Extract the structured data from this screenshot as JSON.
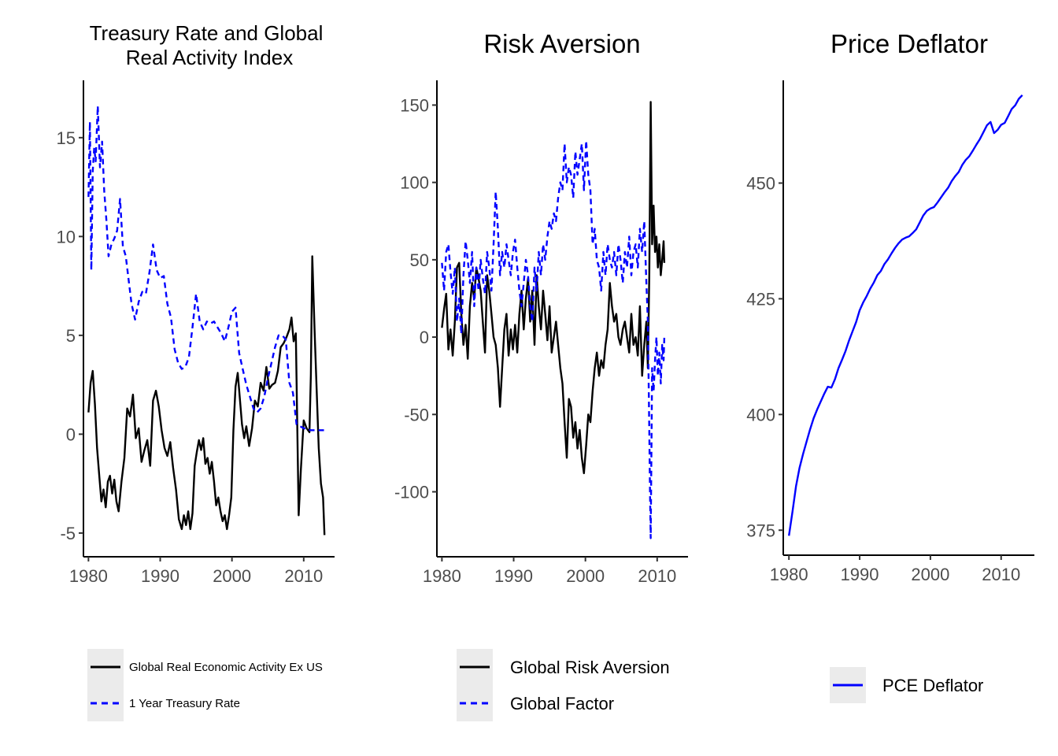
{
  "chart_data": [
    {
      "type": "line",
      "title_lines": [
        "Treasury Rate and Global",
        "Real Activity Index"
      ],
      "xlabel": "",
      "ylabel": "",
      "xlim": [
        1979.3,
        2014.3
      ],
      "ylim": [
        -6.2,
        17.9
      ],
      "xticks": [
        1980,
        1990,
        2000,
        2010
      ],
      "yticks": [
        -5,
        0,
        5,
        10,
        15
      ],
      "ytick_labels": [
        "-5",
        "0",
        "5",
        "10",
        "15"
      ],
      "grid": false,
      "legend": "bottom",
      "series": [
        {
          "name": "Global Real Economic Activity Ex US",
          "color": "#000000",
          "style": "solid",
          "x": [
            1980.0,
            1980.3,
            1980.6,
            1980.9,
            1981.2,
            1981.5,
            1981.8,
            1982.1,
            1982.4,
            1982.7,
            1983.0,
            1983.3,
            1983.6,
            1983.9,
            1984.2,
            1984.6,
            1985.0,
            1985.4,
            1985.8,
            1986.2,
            1986.6,
            1987.0,
            1987.4,
            1987.8,
            1988.2,
            1988.6,
            1989.0,
            1989.4,
            1989.8,
            1990.2,
            1990.6,
            1991.0,
            1991.4,
            1991.8,
            1992.2,
            1992.6,
            1993.0,
            1993.3,
            1993.6,
            1993.9,
            1994.2,
            1994.5,
            1994.8,
            1995.1,
            1995.4,
            1995.7,
            1996.0,
            1996.3,
            1996.6,
            1996.9,
            1997.2,
            1997.5,
            1997.8,
            1998.1,
            1998.4,
            1998.7,
            1999.0,
            1999.3,
            1999.6,
            1999.9,
            2000.2,
            2000.5,
            2000.8,
            2001.1,
            2001.4,
            2001.7,
            2002.0,
            2002.4,
            2002.8,
            2003.2,
            2003.6,
            2004.0,
            2004.4,
            2004.8,
            2005.2,
            2005.6,
            2006.0,
            2006.4,
            2006.8,
            2007.2,
            2007.6,
            2008.0,
            2008.3,
            2008.6,
            2008.9,
            2009.1,
            2009.3,
            2009.6,
            2010.0,
            2010.4,
            2010.8,
            2011.0,
            2011.2,
            2011.5,
            2011.8,
            2012.1,
            2012.4,
            2012.7,
            2012.9
          ],
          "values": [
            1.1,
            2.6,
            3.2,
            1.5,
            -0.7,
            -2.1,
            -3.4,
            -2.8,
            -3.7,
            -2.4,
            -2.1,
            -3.0,
            -2.3,
            -3.4,
            -3.9,
            -2.4,
            -1.2,
            1.3,
            0.9,
            2.0,
            -0.2,
            0.3,
            -1.4,
            -0.8,
            -0.3,
            -1.6,
            1.7,
            2.2,
            1.4,
            0.2,
            -0.7,
            -1.1,
            -0.4,
            -1.7,
            -2.8,
            -4.3,
            -4.8,
            -4.1,
            -4.6,
            -3.9,
            -4.8,
            -4.0,
            -1.6,
            -0.9,
            -0.3,
            -0.8,
            -0.2,
            -1.5,
            -1.2,
            -2.0,
            -1.4,
            -2.4,
            -3.6,
            -3.2,
            -3.9,
            -4.4,
            -4.1,
            -4.8,
            -4.1,
            -3.2,
            0.2,
            2.4,
            3.1,
            1.8,
            0.5,
            -0.2,
            0.4,
            -0.6,
            0.3,
            1.7,
            1.4,
            2.6,
            2.2,
            3.4,
            2.3,
            2.5,
            2.6,
            3.2,
            4.4,
            4.6,
            4.9,
            5.3,
            5.9,
            4.7,
            5.1,
            0.5,
            -4.1,
            -1.8,
            0.7,
            0.3,
            0.1,
            3.0,
            9.0,
            5.4,
            2.3,
            -0.7,
            -2.5,
            -3.2,
            -5.1
          ]
        },
        {
          "name": "1 Year Treasury Rate",
          "color": "#0000ff",
          "style": "dashed",
          "x": [
            1980.0,
            1980.2,
            1980.4,
            1980.6,
            1980.8,
            1981.0,
            1981.3,
            1981.6,
            1981.9,
            1982.2,
            1982.5,
            1982.8,
            1983.2,
            1983.6,
            1984.0,
            1984.4,
            1984.8,
            1985.2,
            1985.6,
            1986.0,
            1986.5,
            1987.0,
            1987.5,
            1988.0,
            1988.5,
            1989.0,
            1989.5,
            1990.0,
            1990.5,
            1991.0,
            1991.5,
            1992.0,
            1992.5,
            1993.0,
            1993.5,
            1994.0,
            1994.5,
            1995.0,
            1995.5,
            1996.0,
            1996.5,
            1997.0,
            1997.5,
            1998.0,
            1998.5,
            1999.0,
            1999.5,
            2000.0,
            2000.5,
            2001.0,
            2001.5,
            2002.0,
            2002.5,
            2003.0,
            2003.5,
            2004.0,
            2004.5,
            2005.0,
            2005.5,
            2006.0,
            2006.5,
            2007.0,
            2007.5,
            2008.0,
            2008.5,
            2009.0,
            2010.0,
            2011.0,
            2012.0,
            2013.0
          ],
          "values": [
            12.0,
            15.8,
            8.3,
            13.3,
            14.5,
            13.8,
            16.6,
            13.5,
            14.8,
            12.3,
            10.8,
            9.0,
            9.6,
            9.9,
            10.3,
            11.9,
            9.5,
            9.0,
            7.8,
            6.6,
            5.8,
            6.7,
            7.2,
            7.1,
            8.2,
            9.6,
            8.3,
            7.9,
            8.0,
            6.6,
            5.9,
            4.3,
            3.6,
            3.3,
            3.4,
            3.9,
            5.4,
            7.1,
            5.7,
            5.3,
            5.7,
            5.6,
            5.7,
            5.4,
            5.1,
            4.7,
            5.4,
            6.2,
            6.4,
            4.1,
            3.3,
            2.5,
            1.9,
            1.3,
            1.1,
            1.3,
            1.9,
            2.8,
            3.6,
            4.4,
            5.0,
            5.0,
            4.8,
            2.6,
            2.1,
            0.5,
            0.3,
            0.2,
            0.2,
            0.2
          ]
        }
      ]
    },
    {
      "type": "line",
      "title": "Risk Aversion",
      "xlabel": "",
      "ylabel": "",
      "xlim": [
        1979.3,
        2014.3
      ],
      "ylim": [
        -142,
        166
      ],
      "xticks": [
        1980,
        1990,
        2000,
        2010
      ],
      "yticks": [
        -100,
        -50,
        0,
        50,
        100,
        150
      ],
      "ytick_labels": [
        "-100",
        "-50",
        "0",
        "50",
        "100",
        "150"
      ],
      "grid": false,
      "legend": "bottom",
      "series": [
        {
          "name": "Global Risk Aversion",
          "color": "#000000",
          "style": "solid",
          "x": [
            1980.0,
            1980.3,
            1980.6,
            1980.9,
            1981.2,
            1981.5,
            1981.8,
            1982.1,
            1982.4,
            1982.7,
            1983.0,
            1983.3,
            1983.6,
            1983.9,
            1984.2,
            1984.5,
            1984.8,
            1985.1,
            1985.4,
            1985.7,
            1986.0,
            1986.3,
            1986.6,
            1986.9,
            1987.2,
            1987.5,
            1987.8,
            1988.1,
            1988.4,
            1988.7,
            1989.0,
            1989.3,
            1989.6,
            1989.9,
            1990.2,
            1990.5,
            1990.8,
            1991.1,
            1991.4,
            1991.7,
            1992.0,
            1992.3,
            1992.6,
            1992.9,
            1993.2,
            1993.5,
            1993.8,
            1994.1,
            1994.4,
            1994.7,
            1995.0,
            1995.3,
            1995.6,
            1995.9,
            1996.2,
            1996.5,
            1996.8,
            1997.1,
            1997.4,
            1997.7,
            1998.0,
            1998.3,
            1998.6,
            1998.9,
            1999.2,
            1999.5,
            1999.8,
            2000.1,
            2000.4,
            2000.7,
            2001.0,
            2001.3,
            2001.6,
            2001.9,
            2002.2,
            2002.5,
            2002.8,
            2003.1,
            2003.4,
            2003.7,
            2004.0,
            2004.3,
            2004.6,
            2004.9,
            2005.2,
            2005.5,
            2005.8,
            2006.1,
            2006.4,
            2006.7,
            2007.0,
            2007.3,
            2007.6,
            2007.9,
            2008.2,
            2008.5,
            2008.7,
            2008.9,
            2009.0,
            2009.1,
            2009.3,
            2009.5,
            2009.7,
            2009.9,
            2010.1,
            2010.3,
            2010.5,
            2010.7,
            2010.9,
            2011.0
          ],
          "values": [
            6,
            18,
            28,
            -8,
            5,
            -12,
            10,
            45,
            48,
            15,
            -5,
            8,
            -14,
            20,
            35,
            25,
            45,
            38,
            30,
            10,
            -10,
            40,
            30,
            15,
            0,
            -5,
            -20,
            -45,
            -20,
            5,
            15,
            -12,
            5,
            -8,
            8,
            -10,
            15,
            30,
            5,
            25,
            38,
            10,
            30,
            -5,
            40,
            20,
            5,
            30,
            15,
            -2,
            20,
            -10,
            0,
            10,
            -5,
            -20,
            -30,
            -55,
            -78,
            -40,
            -45,
            -65,
            -55,
            -72,
            -60,
            -78,
            -88,
            -70,
            -50,
            -55,
            -35,
            -20,
            -10,
            -25,
            -15,
            -20,
            -5,
            5,
            35,
            20,
            10,
            15,
            0,
            -5,
            5,
            10,
            0,
            -10,
            15,
            -5,
            0,
            -12,
            20,
            -25,
            -5,
            10,
            -20,
            40,
            95,
            152,
            60,
            85,
            55,
            65,
            45,
            60,
            40,
            50,
            62,
            48
          ]
        },
        {
          "name": "Global Factor",
          "color": "#0000ff",
          "style": "dashed",
          "x": [
            1980.0,
            1980.3,
            1980.6,
            1980.9,
            1981.2,
            1981.5,
            1981.8,
            1982.1,
            1982.4,
            1982.7,
            1983.0,
            1983.3,
            1983.6,
            1983.9,
            1984.2,
            1984.5,
            1984.8,
            1985.1,
            1985.4,
            1985.7,
            1986.0,
            1986.3,
            1986.6,
            1986.9,
            1987.2,
            1987.5,
            1987.8,
            1988.1,
            1988.4,
            1988.7,
            1989.0,
            1989.3,
            1989.6,
            1989.9,
            1990.2,
            1990.5,
            1990.8,
            1991.1,
            1991.4,
            1991.7,
            1992.0,
            1992.3,
            1992.6,
            1992.9,
            1993.2,
            1993.5,
            1993.8,
            1994.1,
            1994.4,
            1994.7,
            1995.0,
            1995.3,
            1995.6,
            1995.9,
            1996.2,
            1996.5,
            1996.8,
            1997.1,
            1997.4,
            1997.7,
            1998.0,
            1998.3,
            1998.6,
            1998.9,
            1999.2,
            1999.5,
            1999.8,
            2000.1,
            2000.4,
            2000.7,
            2001.0,
            2001.3,
            2001.6,
            2001.9,
            2002.2,
            2002.5,
            2002.8,
            2003.1,
            2003.4,
            2003.7,
            2004.0,
            2004.3,
            2004.6,
            2004.9,
            2005.2,
            2005.5,
            2005.8,
            2006.1,
            2006.4,
            2006.7,
            2007.0,
            2007.3,
            2007.6,
            2007.9,
            2008.2,
            2008.5,
            2008.7,
            2008.9,
            2009.0,
            2009.1,
            2009.3,
            2009.5,
            2009.7,
            2009.9,
            2010.1,
            2010.3,
            2010.5,
            2010.7,
            2010.9,
            2011.0
          ],
          "values": [
            48,
            30,
            55,
            60,
            42,
            28,
            45,
            10,
            25,
            2,
            40,
            62,
            50,
            35,
            55,
            20,
            45,
            30,
            50,
            38,
            28,
            55,
            45,
            30,
            60,
            94,
            70,
            40,
            55,
            45,
            60,
            50,
            40,
            55,
            63,
            45,
            30,
            20,
            35,
            50,
            40,
            20,
            10,
            45,
            30,
            55,
            40,
            60,
            50,
            65,
            75,
            70,
            80,
            75,
            90,
            100,
            95,
            125,
            100,
            110,
            105,
            90,
            120,
            105,
            115,
            125,
            95,
            127,
            105,
            95,
            60,
            70,
            50,
            45,
            30,
            55,
            40,
            60,
            50,
            45,
            55,
            40,
            60,
            50,
            35,
            55,
            45,
            65,
            40,
            55,
            60,
            45,
            70,
            55,
            75,
            35,
            10,
            -60,
            -100,
            -130,
            -20,
            -35,
            -15,
            0,
            -25,
            -10,
            -30,
            -5,
            -15,
            0
          ]
        }
      ]
    },
    {
      "type": "line",
      "title": "Price Deflator",
      "xlabel": "",
      "ylabel": "",
      "xlim": [
        1979.2,
        2014.7
      ],
      "ylim": [
        369.6,
        472.2
      ],
      "xticks": [
        1980,
        1990,
        2000,
        2010
      ],
      "yticks": [
        375,
        400,
        425,
        450
      ],
      "ytick_labels": [
        "375",
        "400",
        "425",
        "450"
      ],
      "grid": false,
      "legend": "bottom",
      "series": [
        {
          "name": "PCE Deflator",
          "color": "#0000ff",
          "style": "solid",
          "x": [
            1980.0,
            1980.5,
            1981.0,
            1981.5,
            1982.0,
            1982.5,
            1983.0,
            1983.5,
            1984.0,
            1984.5,
            1985.0,
            1985.5,
            1986.0,
            1986.5,
            1987.0,
            1987.5,
            1988.0,
            1988.5,
            1989.0,
            1989.5,
            1990.0,
            1990.5,
            1991.0,
            1991.5,
            1992.0,
            1992.5,
            1993.0,
            1993.5,
            1994.0,
            1994.5,
            1995.0,
            1995.5,
            1996.0,
            1996.5,
            1997.0,
            1997.5,
            1998.0,
            1998.5,
            1999.0,
            1999.5,
            2000.0,
            2000.5,
            2001.0,
            2001.5,
            2002.0,
            2002.5,
            2003.0,
            2003.5,
            2004.0,
            2004.5,
            2005.0,
            2005.5,
            2006.0,
            2006.5,
            2007.0,
            2007.5,
            2008.0,
            2008.5,
            2009.0,
            2009.5,
            2010.0,
            2010.5,
            2011.0,
            2011.5,
            2012.0,
            2012.5,
            2013.0
          ],
          "values": [
            373.8,
            379.0,
            384.5,
            388.5,
            391.5,
            394.2,
            396.8,
            399.2,
            401.1,
            402.8,
            404.5,
            406.0,
            405.8,
            407.6,
            410.0,
            411.8,
            413.7,
            416.0,
            418.0,
            420.0,
            422.5,
            424.2,
            425.6,
            427.2,
            428.5,
            430.1,
            431.0,
            432.5,
            433.5,
            434.8,
            436.0,
            437.0,
            437.8,
            438.2,
            438.5,
            439.2,
            440.0,
            441.5,
            443.0,
            444.0,
            444.5,
            444.8,
            445.8,
            446.9,
            448.0,
            449.0,
            450.4,
            451.5,
            452.4,
            453.9,
            455.0,
            455.8,
            457.0,
            458.3,
            459.5,
            461.0,
            462.5,
            463.2,
            460.8,
            461.5,
            462.6,
            463.0,
            464.5,
            466.0,
            466.8,
            468.2,
            469.0
          ]
        }
      ]
    }
  ]
}
